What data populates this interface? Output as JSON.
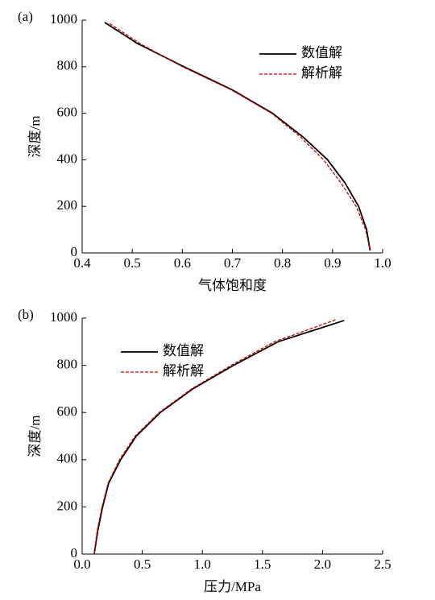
{
  "chart_data": [
    {
      "type": "line",
      "panel_label": "(a)",
      "xlabel": "气体饱和度",
      "ylabel": "深度/m",
      "xlim": [
        0.4,
        1.0
      ],
      "xticks": [
        0.4,
        0.5,
        0.6,
        0.7,
        0.8,
        0.9,
        {
          "value": 1.0,
          "label": "1.0"
        }
      ],
      "ylim": [
        0,
        1000
      ],
      "yticks": [
        0,
        200,
        400,
        600,
        800,
        1000
      ],
      "legend": "upper right",
      "series": [
        {
          "name": "数值解",
          "color": "#000000",
          "style": "solid",
          "x": [
            0.445,
            0.51,
            0.603,
            0.7,
            0.78,
            0.84,
            0.89,
            0.925,
            0.952,
            0.968,
            0.975
          ],
          "values": [
            990,
            900,
            800,
            700,
            600,
            500,
            400,
            300,
            200,
            100,
            10
          ]
        },
        {
          "name": "解析解",
          "color": "#cc0000",
          "style": "dashed",
          "x": [
            0.455,
            0.515,
            0.6,
            0.698,
            0.778,
            0.835,
            0.882,
            0.917,
            0.947,
            0.966,
            0.975
          ],
          "values": [
            985,
            900,
            800,
            700,
            600,
            500,
            400,
            300,
            200,
            100,
            10
          ]
        }
      ]
    },
    {
      "type": "line",
      "panel_label": "(b)",
      "xlabel": "压力/MPa",
      "ylabel": "深度/m",
      "xlim": [
        0,
        2.5
      ],
      "xticks": [
        {
          "value": 0,
          "label": "0.0"
        },
        0.5,
        {
          "value": 1,
          "label": "1.0"
        },
        1.5,
        {
          "value": 2,
          "label": "2.0"
        },
        2.5
      ],
      "ylim": [
        0,
        1000
      ],
      "yticks": [
        0,
        200,
        400,
        600,
        800,
        1000
      ],
      "legend": "upper left",
      "series": [
        {
          "name": "数值解",
          "color": "#000000",
          "style": "solid",
          "x": [
            0.1,
            0.13,
            0.17,
            0.22,
            0.32,
            0.45,
            0.65,
            0.92,
            1.26,
            1.63,
            2.18
          ],
          "values": [
            0,
            100,
            200,
            300,
            400,
            500,
            600,
            700,
            800,
            900,
            990
          ]
        },
        {
          "name": "解析解",
          "color": "#cc0000",
          "style": "dashed",
          "x": [
            0.1,
            0.125,
            0.165,
            0.215,
            0.31,
            0.44,
            0.64,
            0.91,
            1.24,
            1.6,
            2.12
          ],
          "values": [
            0,
            100,
            200,
            300,
            400,
            500,
            600,
            700,
            800,
            900,
            995
          ]
        }
      ]
    }
  ]
}
